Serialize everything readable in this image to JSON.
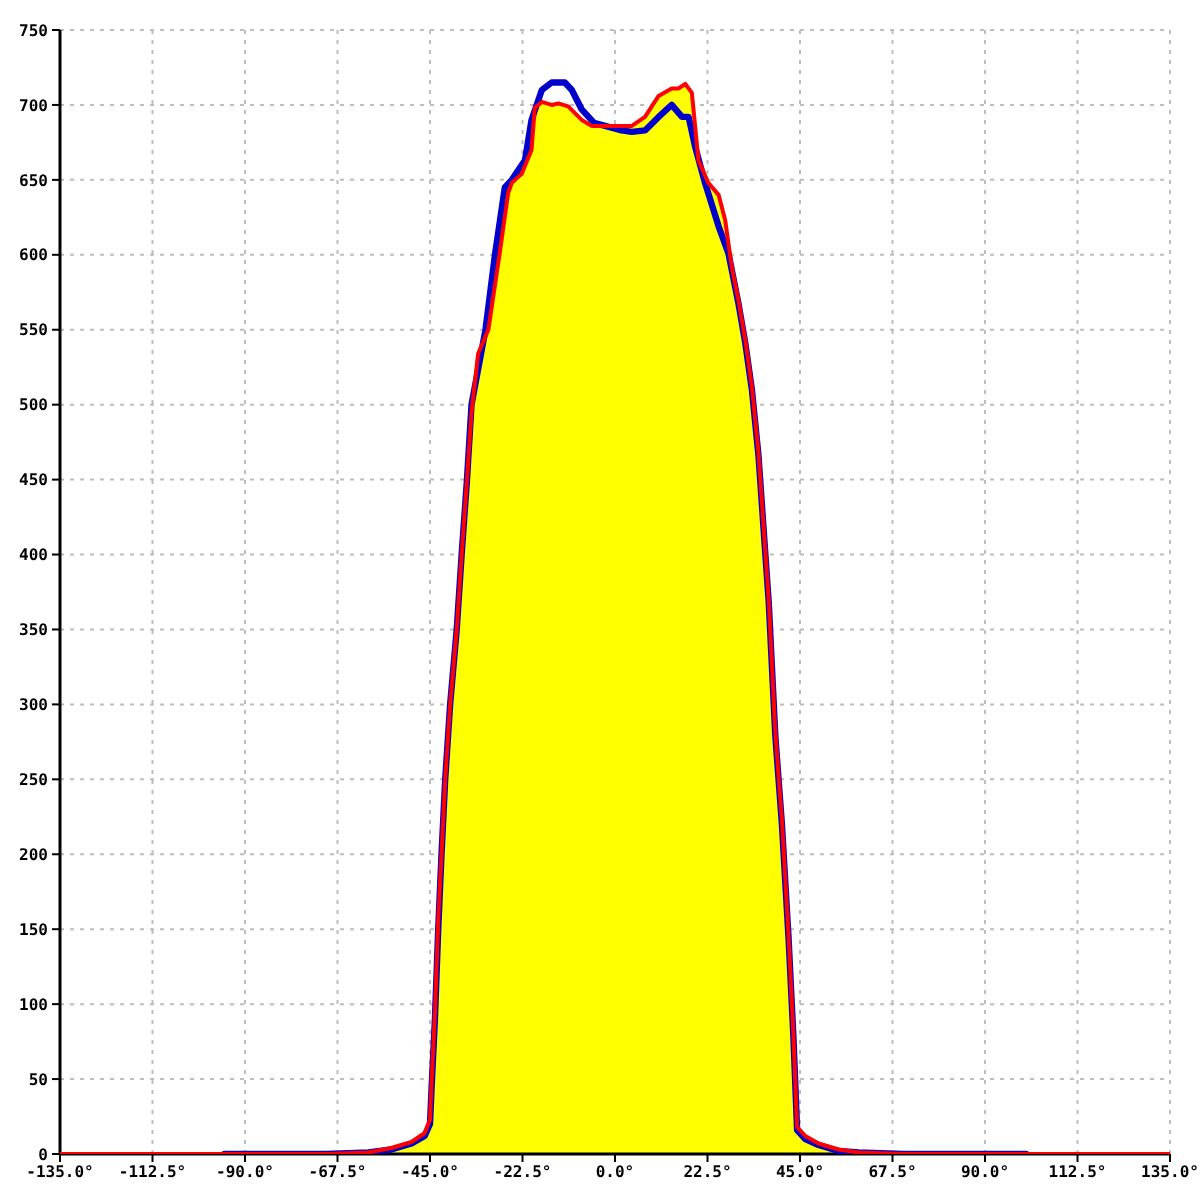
{
  "chart_data": {
    "type": "line",
    "xlim": [
      -135,
      135
    ],
    "xticks": [
      {
        "value": -135,
        "label": "-135.0°"
      },
      {
        "value": -112.5,
        "label": "-112.5°"
      },
      {
        "value": -90,
        "label": "-90.0°"
      },
      {
        "value": -67.5,
        "label": "-67.5°"
      },
      {
        "value": -45,
        "label": "-45.0°"
      },
      {
        "value": -22.5,
        "label": "-22.5°"
      },
      {
        "value": 0,
        "label": "0.0°"
      },
      {
        "value": 22.5,
        "label": "22.5°"
      },
      {
        "value": 45,
        "label": "45.0°"
      },
      {
        "value": 67.5,
        "label": "67.5°"
      },
      {
        "value": 90,
        "label": "90.0°"
      },
      {
        "value": 112.5,
        "label": "112.5°"
      },
      {
        "value": 135,
        "label": "135.0°"
      }
    ],
    "ylim": [
      0,
      750
    ],
    "yticks": [
      0,
      50,
      100,
      150,
      200,
      250,
      300,
      350,
      400,
      450,
      500,
      550,
      600,
      650,
      700,
      750
    ],
    "grid": true,
    "marker": "none",
    "line_style": "solid",
    "series": [
      {
        "type": "area",
        "color": "#ffff00",
        "x": [
          -70,
          -60,
          -54.4,
          -49.5,
          -46.3,
          -45,
          -44.6,
          -43.8,
          -43,
          -42.2,
          -41.3,
          -40.1,
          -38.5,
          -37.3,
          -36,
          -34.9,
          -33.3,
          -30.8,
          -28.1,
          -26,
          -25.1,
          -22.7,
          -20.3,
          -19.5,
          -17.8,
          -15.4,
          -13.8,
          -11.4,
          -8.1,
          -5.7,
          -0.8,
          4.1,
          7.3,
          10.6,
          13.8,
          15.4,
          17.1,
          18.7,
          20.3,
          22.7,
          25.2,
          26.8,
          28.4,
          30,
          31.7,
          33.3,
          34.9,
          36.5,
          37.4,
          39,
          40.6,
          42.2,
          43.4,
          44.3,
          46.3,
          49.5,
          54.4,
          59.3,
          70
        ],
        "values": [
          0,
          1,
          4,
          8,
          14,
          23,
          49,
          94,
          156,
          200,
          250,
          300,
          350,
          400,
          450,
          495,
          534,
          550,
          600,
          641,
          648,
          654,
          670,
          698,
          702,
          700,
          701,
          699,
          690,
          686,
          686,
          686,
          692,
          706,
          711,
          711,
          714,
          708,
          663,
          648,
          640,
          623,
          592,
          570,
          543,
          512,
          468,
          405,
          370,
          281,
          223,
          147,
          80,
          18,
          12,
          7,
          3,
          1,
          0
        ]
      },
      {
        "color": "#0000cc",
        "x": [
          -95,
          -70,
          -60,
          -54.4,
          -49.5,
          -46.3,
          -45,
          -44.6,
          -43.8,
          -43,
          -42.2,
          -41.3,
          -40.1,
          -38.5,
          -37.3,
          -36,
          -34.9,
          -31.5,
          -29.2,
          -26.8,
          -25.1,
          -21.9,
          -20.3,
          -17.8,
          -15.4,
          -12.2,
          -10.5,
          -8.1,
          -5.1,
          -2.4,
          1.6,
          4.1,
          7.3,
          10.6,
          13.8,
          16.3,
          17.9,
          19.5,
          21.9,
          25.2,
          27.6,
          28.4,
          30,
          31.7,
          33.3,
          34.9,
          36.5,
          37.4,
          39,
          40.6,
          42.2,
          43.4,
          44.3,
          46.3,
          49.5,
          54.4,
          59.3,
          70,
          100
        ],
        "values": [
          0,
          0,
          1,
          3,
          7,
          12,
          20,
          45,
          90,
          150,
          200,
          250,
          300,
          350,
          400,
          450,
          500,
          550,
          600,
          645,
          650,
          663,
          690,
          710,
          715,
          715,
          710,
          697,
          688,
          686,
          683,
          682,
          683,
          692,
          700,
          692,
          692,
          672,
          648,
          619,
          601,
          590,
          568,
          541,
          510,
          466,
          403,
          368,
          279,
          220,
          145,
          78,
          16,
          10,
          6,
          2,
          1,
          0,
          0
        ]
      },
      {
        "color": "#ff0000",
        "x": [
          -135,
          -95,
          -70,
          -60,
          -54.4,
          -49.5,
          -46.3,
          -45,
          -44.6,
          -43.8,
          -43,
          -42.2,
          -41.3,
          -40.1,
          -38.5,
          -37.3,
          -36,
          -34.9,
          -33.3,
          -30.8,
          -28.1,
          -26,
          -25.1,
          -22.7,
          -20.3,
          -19.5,
          -17.8,
          -15.4,
          -13.8,
          -11.4,
          -8.1,
          -5.7,
          -0.8,
          4.1,
          7.3,
          10.6,
          13.8,
          15.4,
          17.1,
          18.7,
          20.3,
          22.7,
          25.2,
          26.8,
          28.4,
          30,
          31.7,
          33.3,
          34.9,
          36.5,
          37.4,
          39,
          40.6,
          42.2,
          43.4,
          44.3,
          46.3,
          49.5,
          54.4,
          59.3,
          70,
          100,
          135
        ],
        "values": [
          0,
          0,
          0,
          1,
          4,
          8,
          14,
          23,
          49,
          94,
          156,
          200,
          250,
          300,
          350,
          400,
          450,
          495,
          534,
          550,
          600,
          641,
          648,
          654,
          670,
          698,
          702,
          700,
          701,
          699,
          690,
          686,
          686,
          686,
          692,
          706,
          711,
          711,
          714,
          708,
          663,
          648,
          640,
          623,
          592,
          570,
          543,
          512,
          468,
          405,
          370,
          281,
          223,
          147,
          80,
          18,
          12,
          7,
          3,
          1,
          0,
          0,
          0
        ]
      }
    ]
  }
}
